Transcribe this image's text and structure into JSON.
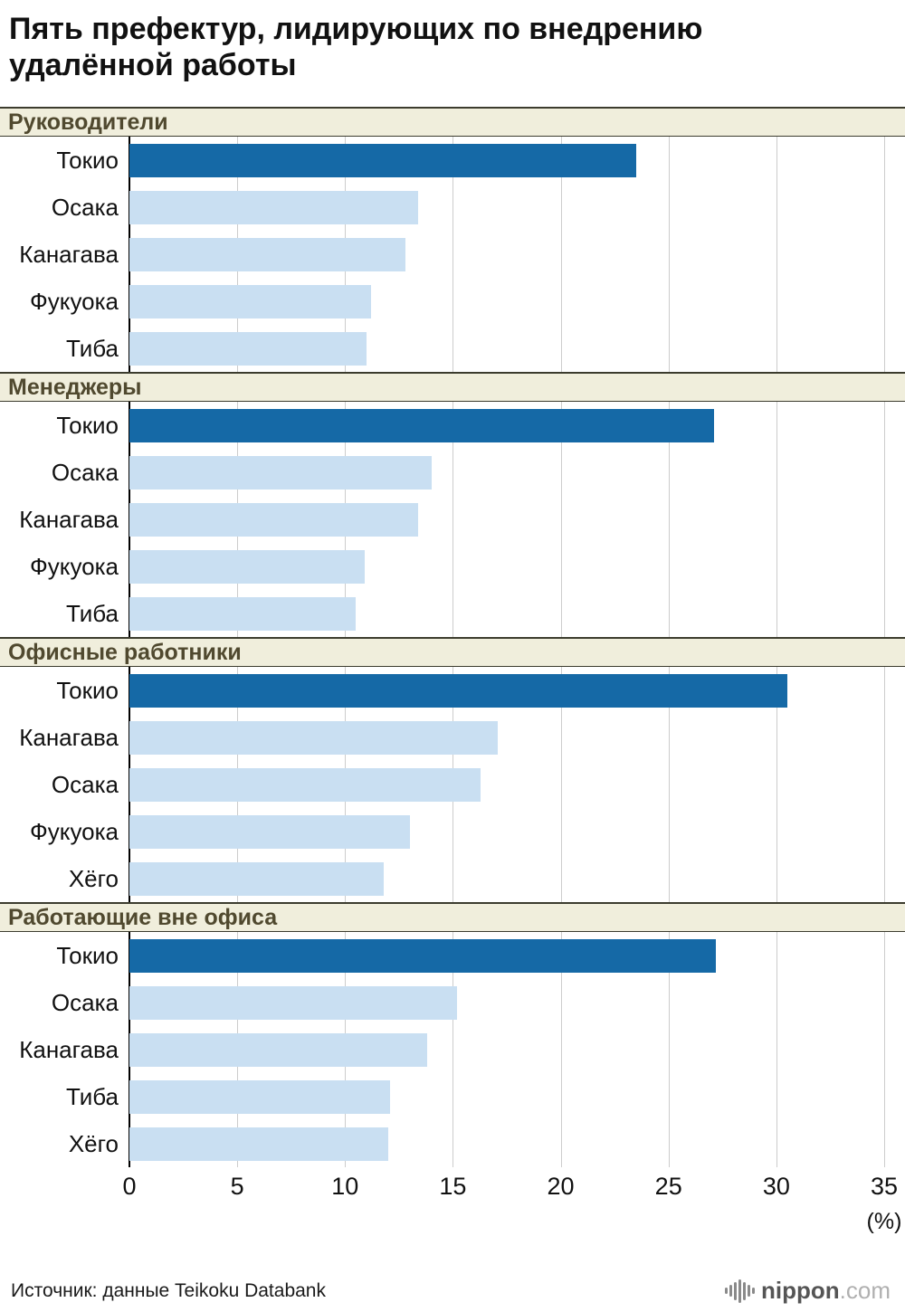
{
  "title": "Пять префектур, лидирующих по внедрению удалённой работы",
  "source": {
    "text": "Источник: данные Teikoku Databank"
  },
  "logo": {
    "icon": "waveform-icon",
    "name": "nippon",
    "tld": ".com"
  },
  "axis": {
    "min": 0,
    "max": 35,
    "ticks": [
      0,
      5,
      10,
      15,
      20,
      25,
      30,
      35
    ],
    "unit": "(%)"
  },
  "colors": {
    "bar_highlight": "#1569a6",
    "bar_default": "#c9dff2",
    "header_bg": "#f0eedc",
    "header_text": "#50492f",
    "gridline": "#cccccc",
    "axis_line": "#000000"
  },
  "chart_data": [
    {
      "type": "bar",
      "title": "Руководители",
      "categories": [
        "Токио",
        "Осака",
        "Канагава",
        "Фукуока",
        "Тиба"
      ],
      "values": [
        23.5,
        13.4,
        12.8,
        11.2,
        11.0
      ],
      "highlight_index": 0,
      "xlim": [
        0,
        35
      ],
      "grid": true,
      "legend": "none"
    },
    {
      "type": "bar",
      "title": "Менеджеры",
      "categories": [
        "Токио",
        "Осака",
        "Канагава",
        "Фукуока",
        "Тиба"
      ],
      "values": [
        27.1,
        14.0,
        13.4,
        10.9,
        10.5
      ],
      "highlight_index": 0,
      "xlim": [
        0,
        35
      ],
      "grid": true,
      "legend": "none"
    },
    {
      "type": "bar",
      "title": "Офисные работники",
      "categories": [
        "Токио",
        "Канагава",
        "Осака",
        "Фукуока",
        "Хёго"
      ],
      "values": [
        30.5,
        17.1,
        16.3,
        13.0,
        11.8
      ],
      "highlight_index": 0,
      "xlim": [
        0,
        35
      ],
      "grid": true,
      "legend": "none"
    },
    {
      "type": "bar",
      "title": "Работающие вне офиса",
      "categories": [
        "Токио",
        "Осака",
        "Канагава",
        "Тиба",
        "Хёго"
      ],
      "values": [
        27.2,
        15.2,
        13.8,
        12.1,
        12.0
      ],
      "highlight_index": 0,
      "xlim": [
        0,
        35
      ],
      "grid": true,
      "legend": "none"
    }
  ]
}
